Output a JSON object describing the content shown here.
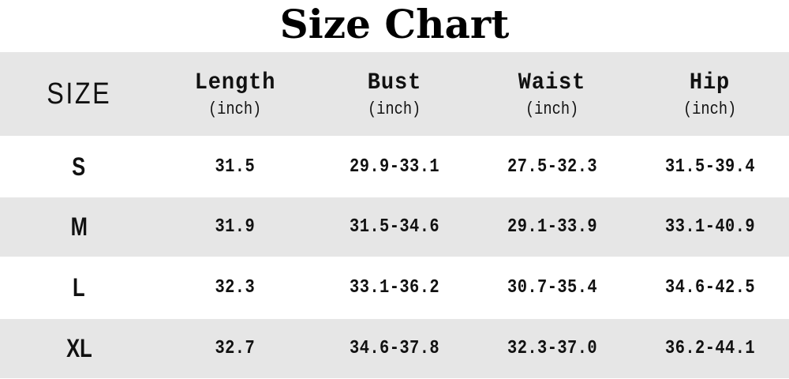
{
  "title": "Size Chart",
  "chart_data": {
    "type": "table",
    "title": "Size Chart",
    "columns": [
      {
        "label": "SIZE",
        "unit": ""
      },
      {
        "label": "Length",
        "unit": "(inch)"
      },
      {
        "label": "Bust",
        "unit": "(inch)"
      },
      {
        "label": "Waist",
        "unit": "(inch)"
      },
      {
        "label": "Hip",
        "unit": "(inch)"
      }
    ],
    "rows": [
      [
        "S",
        "31.5",
        "29.9-33.1",
        "27.5-32.3",
        "31.5-39.4"
      ],
      [
        "M",
        "31.9",
        "31.5-34.6",
        "29.1-33.9",
        "33.1-40.9"
      ],
      [
        "L",
        "32.3",
        "33.1-36.2",
        "30.7-35.4",
        "34.6-42.5"
      ],
      [
        "XL",
        "32.7",
        "34.6-37.8",
        "32.3-37.0",
        "36.2-44.1"
      ]
    ],
    "colors": {
      "stripe": "#e6e6e6",
      "background": "#ffffff",
      "text": "#111111"
    }
  }
}
